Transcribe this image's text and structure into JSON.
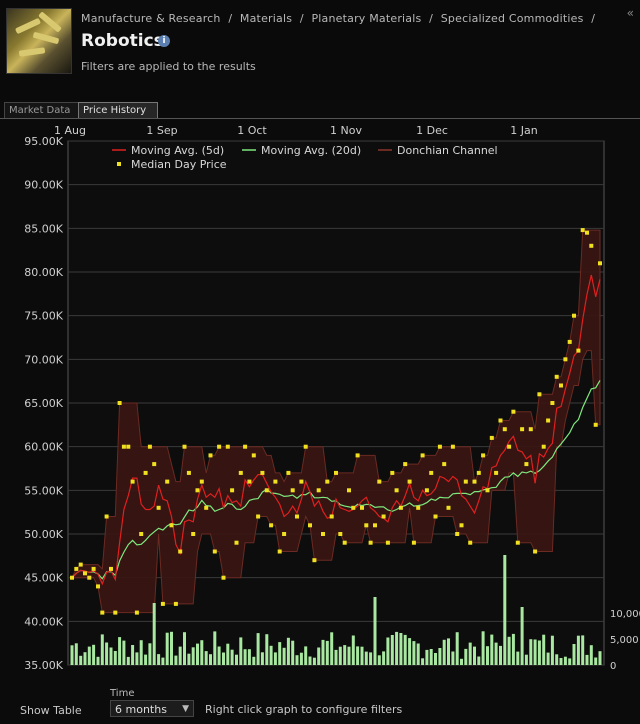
{
  "header": {
    "breadcrumb": [
      "Manufacture & Research",
      "/",
      "Materials",
      "/",
      "Planetary Materials",
      "/",
      "Specialized Commodities",
      "/"
    ],
    "title": "Robotics",
    "subtitle": "Filters are applied to the results",
    "info_icon": "i",
    "collapse_icon": "«"
  },
  "tabs": [
    {
      "label": "Market Data",
      "active": false
    },
    {
      "label": "Price History",
      "active": true
    }
  ],
  "footer": {
    "show_table": "Show Table",
    "time_label": "Time",
    "time_value": "6 months",
    "hint": "Right click graph to configure filters"
  },
  "chart_data": {
    "type": "line",
    "x_ticks": [
      "1 Aug",
      "1 Sep",
      "1 Oct",
      "1 Nov",
      "1 Dec",
      "1 Jan"
    ],
    "y_ticks": [
      "95.00K",
      "90.00K",
      "85.00K",
      "80.00K",
      "75.00K",
      "70.00K",
      "65.00K",
      "60.00K",
      "55.00K",
      "50.00K",
      "45.00K",
      "40.00K",
      "35.00K"
    ],
    "ylim": [
      35000,
      95000
    ],
    "volume_ticks": [
      "10,000",
      "5,000",
      "0"
    ],
    "legend": [
      {
        "name": "Moving Avg. (5d)",
        "color": "#e02020",
        "kind": "line"
      },
      {
        "name": "Moving Avg. (20d)",
        "color": "#7ee87e",
        "kind": "line"
      },
      {
        "name": "Donchian Channel",
        "color": "#6b2a22",
        "kind": "band"
      },
      {
        "name": "Median Day Price",
        "color": "#f0e020",
        "kind": "dot"
      }
    ],
    "median_day_price": [
      45000,
      46000,
      46500,
      45500,
      45000,
      46000,
      44000,
      41000,
      52000,
      46000,
      41000,
      65000,
      60000,
      60000,
      56000,
      41000,
      50000,
      57000,
      60000,
      58000,
      53000,
      42000,
      56000,
      51000,
      42000,
      48000,
      60000,
      57000,
      50000,
      55000,
      56000,
      53000,
      59000,
      48000,
      60000,
      45000,
      60000,
      55000,
      49000,
      57000,
      60000,
      56000,
      59000,
      52000,
      57000,
      55000,
      51000,
      56000,
      48000,
      50000,
      57000,
      55000,
      52000,
      56000,
      60000,
      51000,
      47000,
      55000,
      50000,
      56000,
      52000,
      57000,
      50000,
      49000,
      55000,
      53000,
      59000,
      53000,
      51000,
      49000,
      51000,
      56000,
      52000,
      49000,
      57000,
      55000,
      53000,
      58000,
      56000,
      49000,
      53000,
      59000,
      55000,
      57000,
      52000,
      60000,
      58000,
      53000,
      60000,
      50000,
      51000,
      56000,
      49000,
      56000,
      57000,
      59000,
      55000,
      61000,
      57000,
      63000,
      62000,
      60000,
      64000,
      49000,
      62000,
      58000,
      62000,
      48000,
      66000,
      60000,
      63000,
      65000,
      68000,
      67000,
      70000,
      72000,
      75000,
      71000,
      84800,
      84500,
      83000,
      62500,
      81000
    ]
  }
}
